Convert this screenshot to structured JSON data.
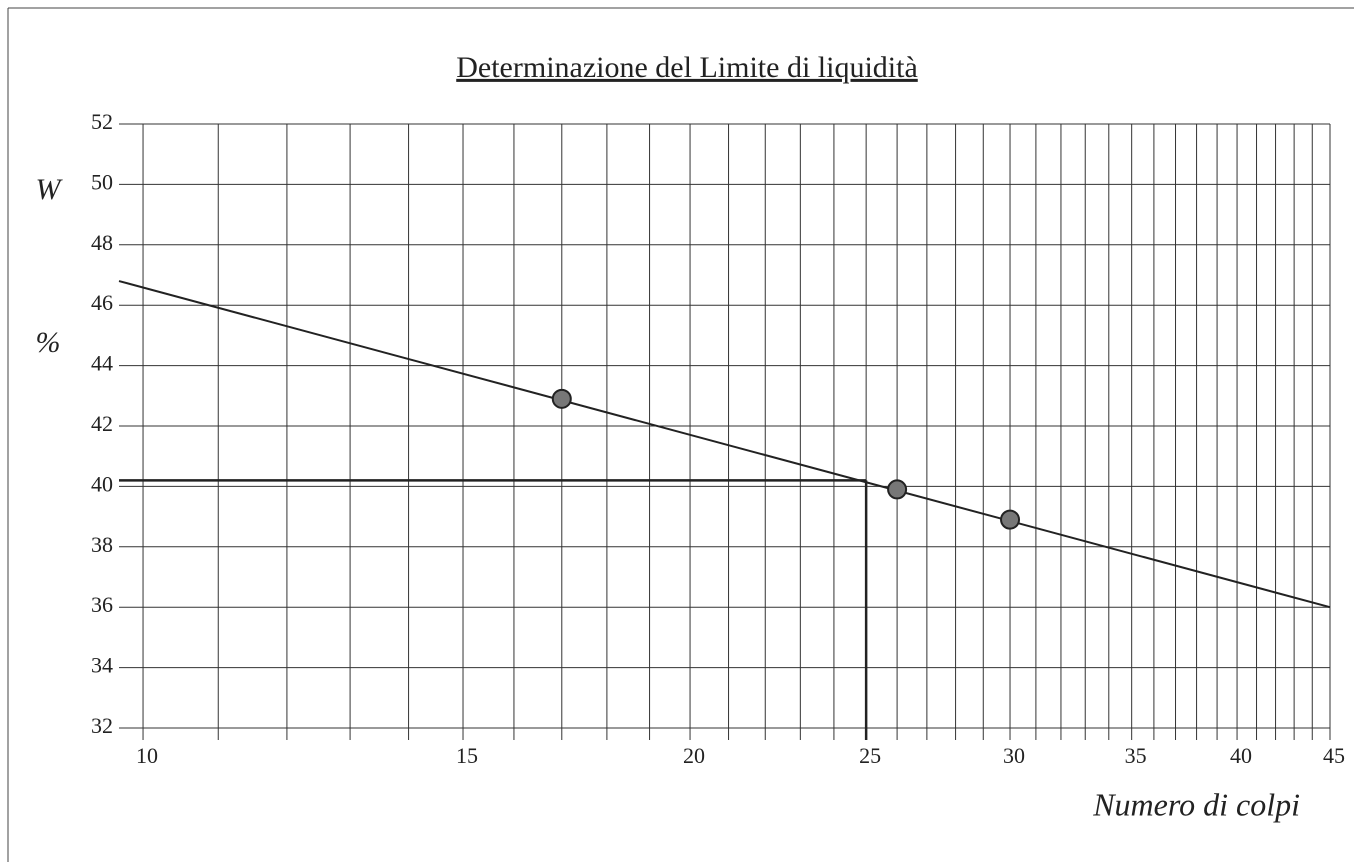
{
  "chart_data": {
    "type": "scatter",
    "title": "Determinazione del Limite di liquidità",
    "y_label_top": "W",
    "y_label_unit": "%",
    "x_label": "Numero di colpi",
    "xscale": "log",
    "xlim": [
      9.7,
      45
    ],
    "ylim": [
      32,
      52
    ],
    "xticks": [
      10,
      15,
      20,
      25,
      30,
      35,
      40,
      45
    ],
    "xgrid": [
      10,
      11,
      12,
      13,
      14,
      15,
      16,
      17,
      18,
      19,
      20,
      21,
      22,
      23,
      24,
      25,
      26,
      27,
      28,
      29,
      30,
      31,
      32,
      33,
      34,
      35,
      36,
      37,
      38,
      39,
      40,
      41,
      42,
      43,
      44,
      45
    ],
    "yticks": [
      32,
      34,
      36,
      38,
      40,
      42,
      44,
      46,
      48,
      50,
      52
    ],
    "grid": true,
    "points": {
      "x": [
        17,
        26,
        30
      ],
      "values": [
        42.9,
        39.9,
        38.9
      ],
      "color": "#777777"
    },
    "fit": {
      "x": [
        9.7,
        45
      ],
      "values": [
        46.8,
        36.0
      ],
      "color": "#222222"
    },
    "liquid_limit": {
      "x": 25,
      "value": 40.2
    }
  }
}
